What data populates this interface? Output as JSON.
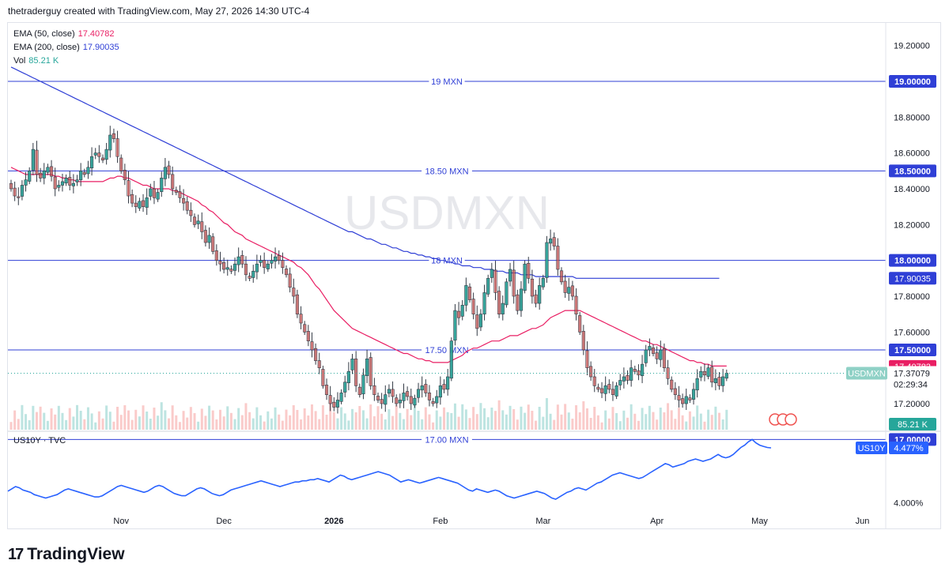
{
  "header": {
    "text": "thetraderguy created with TradingView.com, May 27, 2026 14:30 UTC-4"
  },
  "watermark": "USDMXN",
  "legend": [
    {
      "label": "EMA (50, close)",
      "value": "17.40782",
      "color": "#e91e63"
    },
    {
      "label": "EMA (200, close)",
      "value": "17.90035",
      "color": "#2f3fd6"
    },
    {
      "label": "Vol",
      "value": "85.21 K",
      "color": "#26a69a"
    }
  ],
  "sub_legend": "US10Y · TVC",
  "logo": {
    "mark": "17",
    "text": "TradingView"
  },
  "colors": {
    "up": "#26a69a",
    "down": "#ef5350",
    "level": "#2f3fd6",
    "ema50": "#e91e63",
    "ema200": "#2f3fd6",
    "us10y": "#2962ff"
  },
  "chart_data": [
    {
      "type": "candlestick",
      "symbol": "USDMXN",
      "ylim": [
        17.05,
        19.3
      ],
      "y_ticks": [
        "19.20000",
        "18.80000",
        "18.60000",
        "18.40000",
        "18.20000",
        "17.80000",
        "17.60000",
        "17.20000"
      ],
      "x_ticks": [
        {
          "label": "Nov",
          "bar": 30
        },
        {
          "label": "Dec",
          "bar": 58
        },
        {
          "label": "2026",
          "bar": 88,
          "bold": true
        },
        {
          "label": "Feb",
          "bar": 117
        },
        {
          "label": "Mar",
          "bar": 145
        },
        {
          "label": "Apr",
          "bar": 176
        },
        {
          "label": "May",
          "bar": 204
        },
        {
          "label": "Jun",
          "bar": 232
        }
      ],
      "levels": [
        {
          "value": 19.0,
          "label": "19 MXN",
          "axis": "19.00000"
        },
        {
          "value": 18.5,
          "label": "18.50 MXN",
          "axis": "18.50000"
        },
        {
          "value": 18.0,
          "label": "18 MXN",
          "axis": "18.00000"
        },
        {
          "value": 17.5,
          "label": "17.50 MXN",
          "axis": "17.50000"
        },
        {
          "value": 17.0,
          "label": "17.00 MXN",
          "axis": "17.00000"
        }
      ],
      "close": [
        18.4,
        18.36,
        18.35,
        18.42,
        18.45,
        18.5,
        18.62,
        18.48,
        18.46,
        18.5,
        18.52,
        18.47,
        18.4,
        18.42,
        18.44,
        18.46,
        18.42,
        18.43,
        18.45,
        18.5,
        18.48,
        18.52,
        18.58,
        18.6,
        18.58,
        18.56,
        18.62,
        18.7,
        18.68,
        18.58,
        18.5,
        18.45,
        18.36,
        18.32,
        18.3,
        18.33,
        18.3,
        18.35,
        18.4,
        18.35,
        18.38,
        18.46,
        18.52,
        18.48,
        18.4,
        18.38,
        18.35,
        18.32,
        18.28,
        18.25,
        18.2,
        18.22,
        18.16,
        18.1,
        18.14,
        18.05,
        18.0,
        17.98,
        17.95,
        17.96,
        17.94,
        17.98,
        18.02,
        17.98,
        17.92,
        17.9,
        17.94,
        17.98,
        18.0,
        17.96,
        17.98,
        18.0,
        18.02,
        18.0,
        17.96,
        17.92,
        17.85,
        17.8,
        17.7,
        17.65,
        17.6,
        17.55,
        17.5,
        17.44,
        17.4,
        17.3,
        17.25,
        17.2,
        17.18,
        17.22,
        17.26,
        17.32,
        17.38,
        17.45,
        17.3,
        17.25,
        17.36,
        17.45,
        17.3,
        17.25,
        17.22,
        17.2,
        17.25,
        17.28,
        17.24,
        17.2,
        17.22,
        17.26,
        17.24,
        17.2,
        17.23,
        17.28,
        17.3,
        17.26,
        17.22,
        17.2,
        17.24,
        17.3,
        17.28,
        17.35,
        17.55,
        17.72,
        17.68,
        17.75,
        17.86,
        17.78,
        17.7,
        17.62,
        17.7,
        17.82,
        17.9,
        17.95,
        17.82,
        17.7,
        17.76,
        17.88,
        17.95,
        17.8,
        17.72,
        17.84,
        17.98,
        17.9,
        17.8,
        17.76,
        17.86,
        17.9,
        18.1,
        18.12,
        18.08,
        17.95,
        17.88,
        17.82,
        17.85,
        17.8,
        17.7,
        17.6,
        17.5,
        17.4,
        17.35,
        17.3,
        17.28,
        17.26,
        17.3,
        17.28,
        17.25,
        17.3,
        17.33,
        17.35,
        17.33,
        17.4,
        17.38,
        17.36,
        17.42,
        17.5,
        17.52,
        17.48,
        17.45,
        17.5,
        17.4,
        17.34,
        17.28,
        17.25,
        17.22,
        17.2,
        17.24,
        17.22,
        17.28,
        17.34,
        17.38,
        17.36,
        17.4,
        17.32,
        17.34,
        17.3,
        17.35,
        17.37
      ],
      "ema50": [
        18.52,
        18.51,
        18.5,
        18.49,
        18.48,
        18.48,
        18.48,
        18.48,
        18.48,
        18.48,
        18.48,
        18.48,
        18.47,
        18.47,
        18.46,
        18.46,
        18.45,
        18.45,
        18.44,
        18.44,
        18.44,
        18.44,
        18.44,
        18.44,
        18.44,
        18.44,
        18.45,
        18.46,
        18.46,
        18.47,
        18.47,
        18.46,
        18.46,
        18.45,
        18.44,
        18.43,
        18.42,
        18.42,
        18.41,
        18.4,
        18.4,
        18.4,
        18.4,
        18.4,
        18.39,
        18.39,
        18.38,
        18.37,
        18.36,
        18.35,
        18.34,
        18.33,
        18.31,
        18.3,
        18.28,
        18.27,
        18.25,
        18.23,
        18.21,
        18.2,
        18.18,
        18.16,
        18.15,
        18.14,
        18.12,
        18.11,
        18.1,
        18.09,
        18.08,
        18.07,
        18.06,
        18.05,
        18.04,
        18.03,
        18.02,
        18.01,
        18.0,
        17.99,
        17.97,
        17.96,
        17.94,
        17.92,
        17.89,
        17.86,
        17.84,
        17.81,
        17.78,
        17.75,
        17.72,
        17.7,
        17.68,
        17.66,
        17.64,
        17.62,
        17.61,
        17.6,
        17.59,
        17.58,
        17.57,
        17.56,
        17.55,
        17.54,
        17.53,
        17.52,
        17.51,
        17.5,
        17.49,
        17.48,
        17.48,
        17.47,
        17.46,
        17.45,
        17.45,
        17.44,
        17.44,
        17.43,
        17.43,
        17.43,
        17.43,
        17.43,
        17.44,
        17.45,
        17.46,
        17.47,
        17.49,
        17.5,
        17.51,
        17.51,
        17.52,
        17.53,
        17.54,
        17.55,
        17.55,
        17.55,
        17.56,
        17.57,
        17.58,
        17.58,
        17.58,
        17.59,
        17.6,
        17.61,
        17.62,
        17.62,
        17.63,
        17.64,
        17.66,
        17.68,
        17.69,
        17.7,
        17.71,
        17.72,
        17.72,
        17.72,
        17.72,
        17.72,
        17.71,
        17.7,
        17.69,
        17.68,
        17.67,
        17.66,
        17.65,
        17.64,
        17.63,
        17.62,
        17.61,
        17.6,
        17.59,
        17.58,
        17.57,
        17.56,
        17.55,
        17.55,
        17.54,
        17.53,
        17.53,
        17.52,
        17.51,
        17.5,
        17.49,
        17.48,
        17.47,
        17.46,
        17.45,
        17.44,
        17.44,
        17.43,
        17.43,
        17.42,
        17.42,
        17.41,
        17.41,
        17.41,
        17.41,
        17.41
      ],
      "ema200": [
        19.08,
        19.07,
        19.06,
        19.05,
        19.04,
        19.03,
        19.02,
        19.01,
        19.0,
        18.99,
        18.98,
        18.97,
        18.96,
        18.95,
        18.94,
        18.93,
        18.92,
        18.91,
        18.9,
        18.89,
        18.88,
        18.87,
        18.86,
        18.85,
        18.84,
        18.83,
        18.82,
        18.81,
        18.8,
        18.79,
        18.78,
        18.77,
        18.76,
        18.75,
        18.74,
        18.73,
        18.72,
        18.71,
        18.7,
        18.69,
        18.68,
        18.67,
        18.66,
        18.65,
        18.64,
        18.63,
        18.62,
        18.61,
        18.6,
        18.59,
        18.58,
        18.57,
        18.56,
        18.55,
        18.54,
        18.53,
        18.52,
        18.51,
        18.5,
        18.49,
        18.48,
        18.47,
        18.46,
        18.45,
        18.44,
        18.43,
        18.42,
        18.41,
        18.4,
        18.39,
        18.38,
        18.37,
        18.36,
        18.35,
        18.34,
        18.33,
        18.32,
        18.31,
        18.3,
        18.29,
        18.28,
        18.27,
        18.26,
        18.25,
        18.24,
        18.23,
        18.22,
        18.21,
        18.2,
        18.19,
        18.18,
        18.17,
        18.16,
        18.16,
        18.15,
        18.14,
        18.13,
        18.12,
        18.12,
        18.11,
        18.1,
        18.09,
        18.09,
        18.08,
        18.07,
        18.07,
        18.06,
        18.05,
        18.05,
        18.04,
        18.04,
        18.03,
        18.03,
        18.02,
        18.02,
        18.01,
        18.01,
        18.0,
        18.0,
        17.99,
        17.99,
        17.98,
        17.98,
        17.97,
        17.97,
        17.97,
        17.96,
        17.96,
        17.96,
        17.95,
        17.95,
        17.95,
        17.94,
        17.94,
        17.94,
        17.93,
        17.93,
        17.93,
        17.93,
        17.92,
        17.92,
        17.92,
        17.92,
        17.91,
        17.91,
        17.91,
        17.91,
        17.91,
        17.91,
        17.91,
        17.91,
        17.91,
        17.91,
        17.91,
        17.9,
        17.9,
        17.9,
        17.9,
        17.9,
        17.9,
        17.9,
        17.9,
        17.9,
        17.9,
        17.9,
        17.9,
        17.9,
        17.9,
        17.9,
        17.9,
        17.9,
        17.9,
        17.9,
        17.9,
        17.9,
        17.9,
        17.9,
        17.9,
        17.9,
        17.9,
        17.9,
        17.9,
        17.9,
        17.9,
        17.9,
        17.9,
        17.9,
        17.9,
        17.9,
        17.9,
        17.9,
        17.9,
        17.9,
        17.9
      ],
      "last": {
        "symbol": "USDMXN",
        "price": "17.37079",
        "countdown": "02:29:34",
        "ema50": "17.40782",
        "ema200": "17.90035",
        "volume": "85.21 K"
      }
    },
    {
      "type": "line",
      "symbol": "US10Y",
      "ylim": [
        3.92,
        4.58
      ],
      "y_ticks": [
        "4.000%"
      ],
      "last": "4.477%",
      "values": [
        4.1,
        4.12,
        4.14,
        4.13,
        4.11,
        4.1,
        4.09,
        4.07,
        4.06,
        4.05,
        4.04,
        4.05,
        4.06,
        4.07,
        4.09,
        4.11,
        4.12,
        4.11,
        4.1,
        4.09,
        4.08,
        4.07,
        4.06,
        4.05,
        4.05,
        4.06,
        4.08,
        4.1,
        4.12,
        4.14,
        4.15,
        4.14,
        4.13,
        4.12,
        4.11,
        4.1,
        4.09,
        4.1,
        4.12,
        4.14,
        4.15,
        4.14,
        4.12,
        4.1,
        4.08,
        4.07,
        4.06,
        4.06,
        4.08,
        4.1,
        4.12,
        4.13,
        4.12,
        4.1,
        4.08,
        4.07,
        4.06,
        4.07,
        4.09,
        4.11,
        4.12,
        4.13,
        4.14,
        4.15,
        4.16,
        4.17,
        4.18,
        4.19,
        4.18,
        4.17,
        4.16,
        4.15,
        4.14,
        4.15,
        4.16,
        4.17,
        4.18,
        4.18,
        4.19,
        4.19,
        4.2,
        4.2,
        4.21,
        4.2,
        4.19,
        4.18,
        4.2,
        4.22,
        4.24,
        4.23,
        4.21,
        4.2,
        4.21,
        4.22,
        4.23,
        4.24,
        4.25,
        4.26,
        4.27,
        4.26,
        4.25,
        4.24,
        4.22,
        4.2,
        4.18,
        4.19,
        4.2,
        4.19,
        4.18,
        4.17,
        4.18,
        4.19,
        4.2,
        4.21,
        4.22,
        4.21,
        4.2,
        4.19,
        4.18,
        4.17,
        4.15,
        4.13,
        4.11,
        4.1,
        4.12,
        4.11,
        4.1,
        4.09,
        4.1,
        4.11,
        4.1,
        4.08,
        4.06,
        4.05,
        4.04,
        4.05,
        4.06,
        4.07,
        4.08,
        4.09,
        4.1,
        4.09,
        4.08,
        4.06,
        4.04,
        4.03,
        4.05,
        4.07,
        4.09,
        4.1,
        4.12,
        4.13,
        4.12,
        4.11,
        4.13,
        4.15,
        4.17,
        4.18,
        4.2,
        4.22,
        4.24,
        4.25,
        4.26,
        4.25,
        4.24,
        4.23,
        4.22,
        4.21,
        4.22,
        4.24,
        4.26,
        4.28,
        4.3,
        4.32,
        4.34,
        4.33,
        4.31,
        4.32,
        4.33,
        4.34,
        4.36,
        4.37,
        4.38,
        4.37,
        4.36,
        4.37,
        4.38,
        4.4,
        4.42,
        4.4,
        4.39,
        4.4,
        4.42,
        4.45,
        4.48,
        4.5,
        4.53,
        4.55,
        4.52,
        4.5,
        4.49,
        4.48,
        4.477
      ]
    }
  ]
}
